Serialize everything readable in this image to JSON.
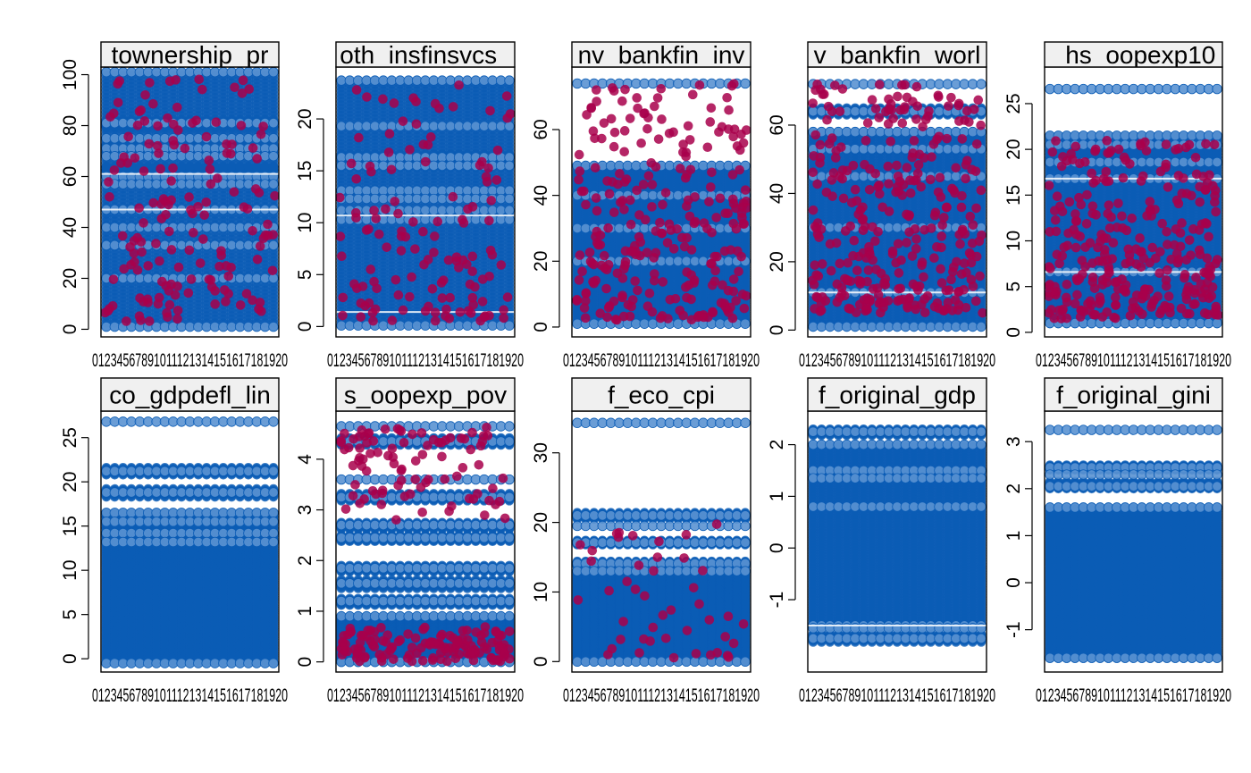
{
  "colors": {
    "blue": "#0b5cb5",
    "blue_light": "#5a92d2",
    "red": "#a8004b",
    "strip_bg": "#f0f0f0"
  },
  "x_tick_label_text": "01234567891011121314151617181920",
  "chart_data": [
    {
      "type": "scatter",
      "title": "townership_pr",
      "ylim": [
        -3,
        103
      ],
      "yticks": [
        0,
        20,
        40,
        60,
        80,
        100
      ],
      "blue_range": [
        1,
        101
      ],
      "blue_levels": [
        101,
        81,
        75,
        71,
        68,
        60,
        57,
        47,
        40,
        33,
        20,
        1
      ],
      "white_lines": [
        61,
        47
      ],
      "dense_blue_bands": [
        [
          60,
          64
        ],
        [
          69,
          73
        ],
        [
          79,
          82
        ]
      ],
      "red_points_count": 160,
      "red_range": [
        3,
        100
      ]
    },
    {
      "type": "scatter",
      "title": "oth_insfinsvcs_",
      "ylim": [
        -1,
        25
      ],
      "yticks": [
        0,
        5,
        10,
        15,
        20
      ],
      "blue_range": [
        0.1,
        23.7
      ],
      "blue_levels": [
        23.7,
        19.3,
        16.3,
        15.5,
        13.1,
        12.3,
        11.2,
        10.3,
        0.1
      ],
      "white_lines": [
        10.7,
        1.4
      ],
      "dense_blue_bands": [
        [
          15.4,
          16.6
        ]
      ],
      "red_points_count": 130,
      "red_range": [
        0.5,
        23.7
      ]
    },
    {
      "type": "scatter",
      "title": "nv_bankfin_inv",
      "ylim": [
        -3,
        79
      ],
      "yticks": [
        0,
        20,
        40,
        60
      ],
      "blue_range": [
        1,
        49
      ],
      "blue_levels": [
        74,
        49,
        40,
        30,
        20,
        1
      ],
      "white_lines": [],
      "dense_blue_bands": [],
      "red_points_count": 260,
      "red_range": [
        2,
        74
      ]
    },
    {
      "type": "scatter",
      "title": "v_bankfin_worl",
      "ylim": [
        -2,
        77
      ],
      "yticks": [
        0,
        20,
        40,
        60
      ],
      "blue_range": [
        1,
        58
      ],
      "blue_levels": [
        72,
        64,
        58,
        53,
        45,
        30,
        11,
        1
      ],
      "white_lines": [
        11
      ],
      "dense_blue_bands": [
        [
          63,
          65
        ]
      ],
      "red_points_count": 320,
      "red_range": [
        5,
        72
      ]
    },
    {
      "type": "scatter",
      "title": "_hs_oopexp10",
      "ylim": [
        -0.5,
        29
      ],
      "yticks": [
        0,
        5,
        10,
        15,
        20,
        25
      ],
      "blue_range": [
        1,
        21.5
      ],
      "blue_levels": [
        26.6,
        21.5,
        20.5,
        18.6,
        16.8,
        6.6,
        1
      ],
      "white_lines": [
        16.8,
        6.6
      ],
      "dense_blue_bands": [
        [
          18.3,
          21.5
        ]
      ],
      "red_points_count": 300,
      "red_range": [
        1.5,
        21
      ]
    },
    {
      "type": "scatter",
      "title": "co_gdpdefl_lin",
      "ylim": [
        -1.5,
        28
      ],
      "yticks": [
        0,
        5,
        10,
        15,
        20,
        25
      ],
      "blue_range": [
        -0.5,
        16.5
      ],
      "blue_levels": [
        26.8,
        21.2,
        18.8,
        16.5,
        15.5,
        14.2,
        13.2,
        -0.5
      ],
      "white_lines": [],
      "dense_blue_bands": [
        [
          20.8,
          21.6
        ],
        [
          18.3,
          19.2
        ],
        [
          13,
          16.5
        ]
      ],
      "red_points_count": 0,
      "red_range": [
        0,
        0
      ]
    },
    {
      "type": "scatter",
      "title": "s_oopexp_pov",
      "ylim": [
        -0.2,
        4.95
      ],
      "yticks": [
        0,
        1,
        2,
        3,
        4
      ],
      "blue_range": [
        0,
        0.9
      ],
      "blue_levels": [
        4.65,
        4.35,
        3.6,
        3.25,
        2.7,
        2.45,
        1.85,
        1.55,
        1.2,
        0.9,
        0
      ],
      "white_lines": [],
      "dense_blue_bands": [
        [
          4.28,
          4.42
        ],
        [
          3.18,
          3.32
        ],
        [
          2.62,
          2.75
        ],
        [
          2.38,
          2.5
        ],
        [
          1.78,
          1.9
        ],
        [
          1.45,
          1.62
        ],
        [
          1.12,
          1.25
        ]
      ],
      "red_points_count": 220,
      "red_range": [
        0,
        4.65
      ]
    },
    {
      "type": "scatter",
      "title": "f_eco_cpi",
      "ylim": [
        -1.5,
        36
      ],
      "yticks": [
        0,
        10,
        20,
        30
      ],
      "blue_range": [
        0,
        13
      ],
      "blue_levels": [
        34.3,
        21,
        19.5,
        17.1,
        14.1,
        13,
        0
      ],
      "white_lines": [],
      "dense_blue_bands": [
        [
          20.5,
          21.4
        ],
        [
          16.8,
          17.4
        ],
        [
          13.6,
          14.4
        ]
      ],
      "red_points_count": 45,
      "red_range": [
        0.5,
        20
      ]
    },
    {
      "type": "scatter",
      "title": "f_original_gdp",
      "ylim": [
        -2.4,
        2.65
      ],
      "yticks": [
        -1,
        0,
        1,
        2
      ],
      "blue_range": [
        -1.5,
        2.0
      ],
      "blue_levels": [
        2.25,
        2.0,
        1.5,
        1.35,
        0.8,
        -1.5,
        -1.55,
        -1.75
      ],
      "white_lines": [
        -1.5
      ],
      "dense_blue_bands": [
        [
          2.18,
          2.3
        ],
        [
          -1.82,
          -1.66
        ]
      ],
      "red_points_count": 0,
      "red_range": [
        0,
        0
      ]
    },
    {
      "type": "scatter",
      "title": "f_original_gini",
      "ylim": [
        -1.9,
        3.65
      ],
      "yticks": [
        -1,
        0,
        1,
        2,
        3
      ],
      "blue_range": [
        -1.6,
        1.6
      ],
      "blue_levels": [
        3.25,
        2.45,
        2.3,
        2.05,
        1.6,
        -1.6
      ],
      "white_lines": [],
      "dense_blue_bands": [
        [
          2.4,
          2.5
        ],
        [
          2.0,
          2.15
        ]
      ],
      "red_points_count": 0,
      "red_range": [
        0,
        0
      ]
    }
  ]
}
